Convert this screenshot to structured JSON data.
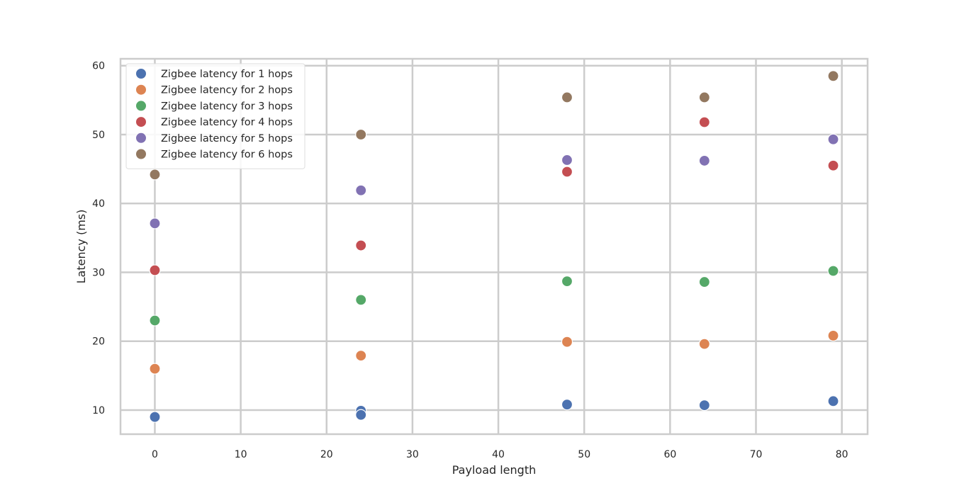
{
  "chart_data": {
    "type": "scatter",
    "title": "",
    "xlabel": "Payload length",
    "ylabel": "Latency (ms)",
    "xlim": [
      -4,
      83
    ],
    "ylim": [
      6.5,
      61
    ],
    "xticks": [
      0,
      10,
      20,
      30,
      40,
      50,
      60,
      70,
      80
    ],
    "yticks": [
      10,
      20,
      30,
      40,
      50,
      60
    ],
    "grid": true,
    "legend_position": "top-left",
    "series": [
      {
        "name": "Zigbee latency for 1 hops",
        "color": "#4c72b0",
        "points": [
          [
            0,
            9.0
          ],
          [
            24,
            9.9
          ],
          [
            24,
            9.3
          ],
          [
            48,
            10.8
          ],
          [
            64,
            10.7
          ],
          [
            79,
            11.3
          ]
        ]
      },
      {
        "name": "Zigbee latency for 2 hops",
        "color": "#dd8452",
        "points": [
          [
            0,
            16.0
          ],
          [
            24,
            17.9
          ],
          [
            48,
            19.9
          ],
          [
            64,
            19.6
          ],
          [
            79,
            20.8
          ]
        ]
      },
      {
        "name": "Zigbee latency for 3 hops",
        "color": "#55a868",
        "points": [
          [
            0,
            23.0
          ],
          [
            24,
            26.0
          ],
          [
            48,
            28.7
          ],
          [
            64,
            28.6
          ],
          [
            79,
            30.2
          ]
        ]
      },
      {
        "name": "Zigbee latency for 4 hops",
        "color": "#c44e52",
        "points": [
          [
            0,
            30.3
          ],
          [
            24,
            33.9
          ],
          [
            48,
            44.6
          ],
          [
            64,
            51.8
          ],
          [
            79,
            45.5
          ]
        ]
      },
      {
        "name": "Zigbee latency for 5 hops",
        "color": "#8172b3",
        "points": [
          [
            0,
            37.1
          ],
          [
            24,
            41.9
          ],
          [
            48,
            46.3
          ],
          [
            64,
            46.2
          ],
          [
            79,
            49.3
          ]
        ]
      },
      {
        "name": "Zigbee latency for 6 hops",
        "color": "#937860",
        "points": [
          [
            0,
            44.2
          ],
          [
            24,
            50.0
          ],
          [
            48,
            55.4
          ],
          [
            64,
            55.4
          ],
          [
            79,
            58.5
          ]
        ]
      }
    ]
  }
}
